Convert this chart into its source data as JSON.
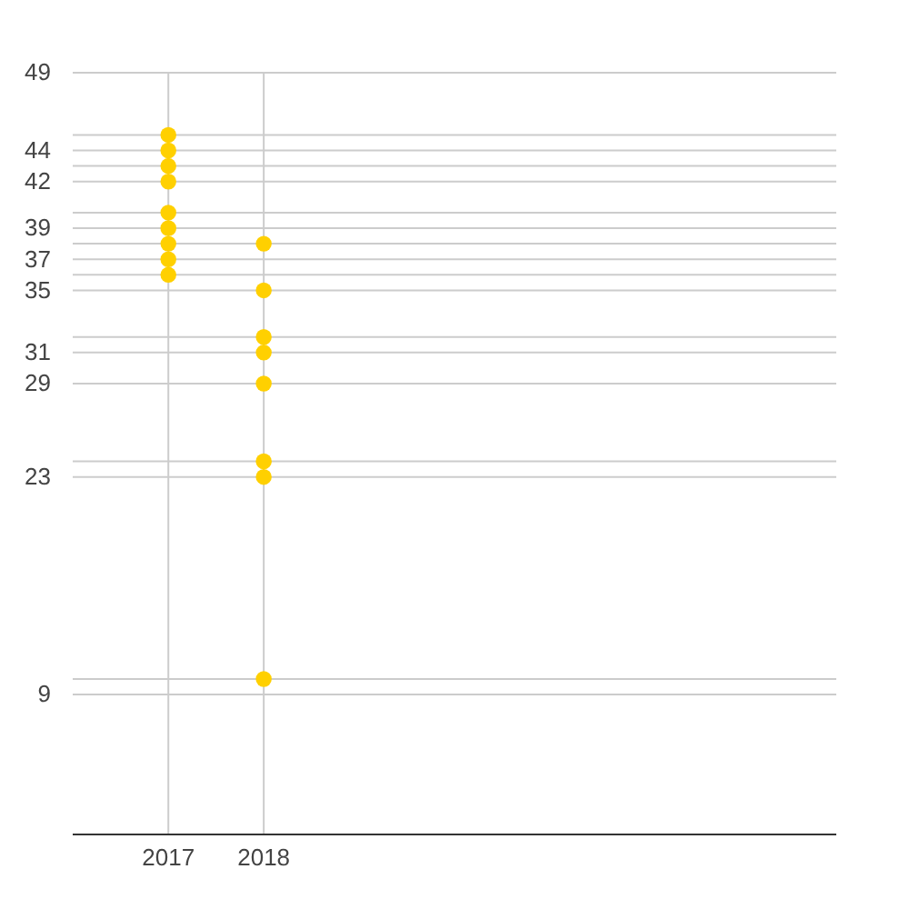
{
  "chart_data": {
    "type": "scatter",
    "xlim": [
      "2016",
      "2024"
    ],
    "xticks": [
      "2017",
      "2018"
    ],
    "ylim": [
      0,
      49
    ],
    "yticks": [
      9,
      {
        "value": 10,
        "label": null
      },
      23,
      {
        "value": 24,
        "label": null
      },
      29,
      31,
      {
        "value": 32,
        "label": null
      },
      35,
      {
        "value": 36,
        "label": null
      },
      37,
      {
        "value": 38,
        "label": null
      },
      39,
      {
        "value": 40,
        "label": null
      },
      42,
      {
        "value": 43,
        "label": null
      },
      44,
      {
        "value": 45,
        "label": null
      },
      49
    ],
    "grid": true,
    "marker": "circle",
    "series": [
      {
        "color": "#ffd000",
        "x": [
          "2017",
          "2017",
          "2017",
          "2017",
          "2017",
          "2017",
          "2017",
          "2017",
          "2017",
          "2018",
          "2018",
          "2018",
          "2018",
          "2018",
          "2018",
          "2018",
          "2018"
        ],
        "values": [
          45,
          44,
          43,
          42,
          40,
          39,
          38,
          37,
          36,
          38,
          35,
          32,
          31,
          29,
          24,
          23,
          10
        ]
      }
    ]
  }
}
